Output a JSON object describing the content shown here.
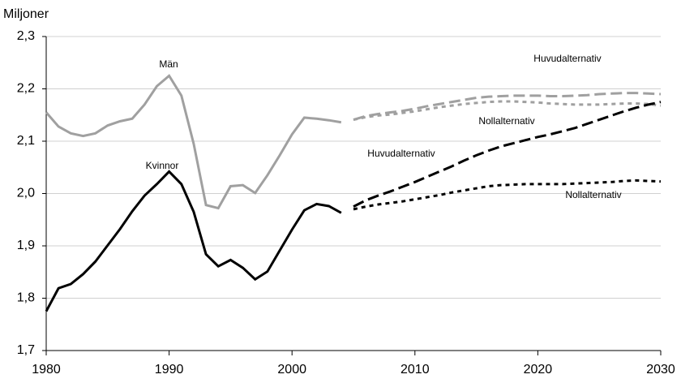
{
  "chart_data": {
    "type": "line",
    "y_label": "Miljoner",
    "x": [
      1980,
      1981,
      1982,
      1983,
      1984,
      1985,
      1986,
      1987,
      1988,
      1989,
      1990,
      1991,
      1992,
      1993,
      1994,
      1995,
      1996,
      1997,
      1998,
      1999,
      2000,
      2001,
      2002,
      2003,
      2004,
      2005,
      2006,
      2007,
      2008,
      2009,
      2010,
      2011,
      2012,
      2013,
      2014,
      2015,
      2016,
      2017,
      2018,
      2019,
      2020,
      2021,
      2022,
      2023,
      2024,
      2025,
      2026,
      2027,
      2028,
      2029,
      2030
    ],
    "xlim": [
      1980,
      2030
    ],
    "xticks": [
      1980,
      1990,
      2000,
      2010,
      2020,
      2030
    ],
    "ylim": [
      1.7,
      2.3
    ],
    "yticks": [
      {
        "value": 1.7,
        "label": "1,7"
      },
      {
        "value": 1.8,
        "label": "1,8"
      },
      {
        "value": 1.9,
        "label": "1,9"
      },
      {
        "value": 2.0,
        "label": "2,0"
      },
      {
        "value": 2.1,
        "label": "2,1"
      },
      {
        "value": 2.2,
        "label": "2,2"
      },
      {
        "value": 2.3,
        "label": "2,3"
      }
    ],
    "grid": true,
    "series": [
      {
        "name": "Män",
        "color": "#a0a0a0",
        "line_style": "solid",
        "values": [
          2.155,
          2.128,
          2.115,
          2.11,
          2.115,
          2.13,
          2.138,
          2.143,
          2.17,
          2.205,
          2.225,
          2.187,
          2.095,
          1.978,
          1.972,
          2.014,
          2.016,
          2.001,
          2.035,
          2.073,
          2.113,
          2.145,
          2.143,
          2.14,
          2.136,
          null,
          null,
          null,
          null,
          null,
          null,
          null,
          null,
          null,
          null,
          null,
          null,
          null,
          null,
          null,
          null,
          null,
          null,
          null,
          null,
          null,
          null,
          null,
          null,
          null,
          null
        ]
      },
      {
        "name": "Kvinnor",
        "color": "#000000",
        "line_style": "solid",
        "values": [
          1.775,
          1.819,
          1.827,
          1.846,
          1.87,
          1.901,
          1.932,
          1.966,
          1.996,
          2.018,
          2.042,
          2.018,
          1.965,
          1.884,
          1.861,
          1.873,
          1.858,
          1.836,
          1.851,
          1.891,
          1.931,
          1.968,
          1.98,
          1.976,
          1.963,
          null,
          null,
          null,
          null,
          null,
          null,
          null,
          null,
          null,
          null,
          null,
          null,
          null,
          null,
          null,
          null,
          null,
          null,
          null,
          null,
          null,
          null,
          null,
          null,
          null,
          null
        ]
      },
      {
        "name": "Huvudalternativ",
        "color": "#a0a0a0",
        "line_style": "dashed",
        "values": [
          null,
          null,
          null,
          null,
          null,
          null,
          null,
          null,
          null,
          null,
          null,
          null,
          null,
          null,
          null,
          null,
          null,
          null,
          null,
          null,
          null,
          null,
          null,
          null,
          null,
          2.141,
          2.148,
          2.152,
          2.155,
          2.158,
          2.162,
          2.167,
          2.171,
          2.175,
          2.179,
          2.183,
          2.185,
          2.186,
          2.187,
          2.187,
          2.187,
          2.186,
          2.186,
          2.187,
          2.188,
          2.19,
          2.191,
          2.192,
          2.192,
          2.191,
          2.19
        ]
      },
      {
        "name": "Nollalternativ",
        "color": "#a0a0a0",
        "line_style": "dotted",
        "values": [
          null,
          null,
          null,
          null,
          null,
          null,
          null,
          null,
          null,
          null,
          null,
          null,
          null,
          null,
          null,
          null,
          null,
          null,
          null,
          null,
          null,
          null,
          null,
          null,
          null,
          2.141,
          2.146,
          2.149,
          2.151,
          2.154,
          2.157,
          2.161,
          2.165,
          2.168,
          2.171,
          2.173,
          2.175,
          2.176,
          2.176,
          2.175,
          2.174,
          2.172,
          2.171,
          2.17,
          2.17,
          2.17,
          2.171,
          2.172,
          2.172,
          2.171,
          2.168
        ]
      },
      {
        "name": "Huvudalternativ",
        "color": "#000000",
        "line_style": "dashed",
        "values": [
          null,
          null,
          null,
          null,
          null,
          null,
          null,
          null,
          null,
          null,
          null,
          null,
          null,
          null,
          null,
          null,
          null,
          null,
          null,
          null,
          null,
          null,
          null,
          null,
          null,
          1.975,
          1.987,
          1.996,
          2.004,
          2.013,
          2.022,
          2.032,
          2.042,
          2.052,
          2.063,
          2.073,
          2.082,
          2.09,
          2.096,
          2.102,
          2.108,
          2.113,
          2.119,
          2.125,
          2.133,
          2.141,
          2.149,
          2.157,
          2.164,
          2.17,
          2.175
        ]
      },
      {
        "name": "Nollalternativ",
        "color": "#000000",
        "line_style": "dotted",
        "values": [
          null,
          null,
          null,
          null,
          null,
          null,
          null,
          null,
          null,
          null,
          null,
          null,
          null,
          null,
          null,
          null,
          null,
          null,
          null,
          null,
          null,
          null,
          null,
          null,
          null,
          1.97,
          1.975,
          1.979,
          1.982,
          1.985,
          1.989,
          1.993,
          1.997,
          2.002,
          2.006,
          2.01,
          2.014,
          2.016,
          2.017,
          2.018,
          2.018,
          2.018,
          2.018,
          2.019,
          2.02,
          2.021,
          2.022,
          2.024,
          2.025,
          2.024,
          2.023
        ]
      }
    ]
  }
}
